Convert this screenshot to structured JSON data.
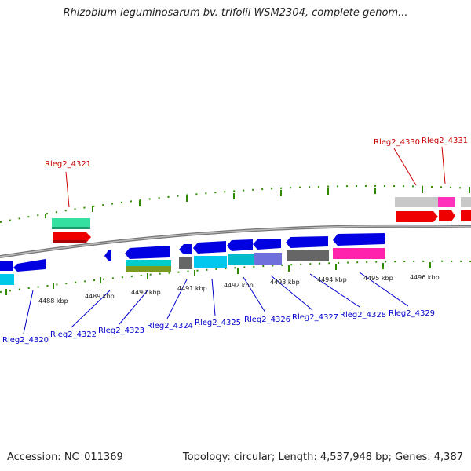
{
  "title": "Rhizobium leguminosarum bv. trifolii WSM2304, complete genom...",
  "footer": {
    "accession": "Accession: NC_011369",
    "summary": "Topology: circular; Length: 4,537,948 bp; Genes: 4,387"
  },
  "tick_labels": [
    "4488 kbp",
    "4489 kbp",
    "4490 kbp",
    "4491 kbp",
    "4492 kbp",
    "4493 kbp",
    "4494 kbp",
    "4495 kbp",
    "4496 kbp"
  ],
  "genes_lower": [
    "Rleg2_4320",
    "Rleg2_4322",
    "Rleg2_4323",
    "Rleg2_4324",
    "Rleg2_4325",
    "Rleg2_4326",
    "Rleg2_4327",
    "Rleg2_4328",
    "Rleg2_4329"
  ],
  "genes_upper": [
    "Rleg2_4321",
    "Rleg2_4330",
    "Rleg2_4331"
  ],
  "colors": {
    "gene_blue": "#0000e0",
    "label_blue": "#0000cc",
    "label_red": "#cc0000",
    "tick_green": "#2e8b00"
  }
}
